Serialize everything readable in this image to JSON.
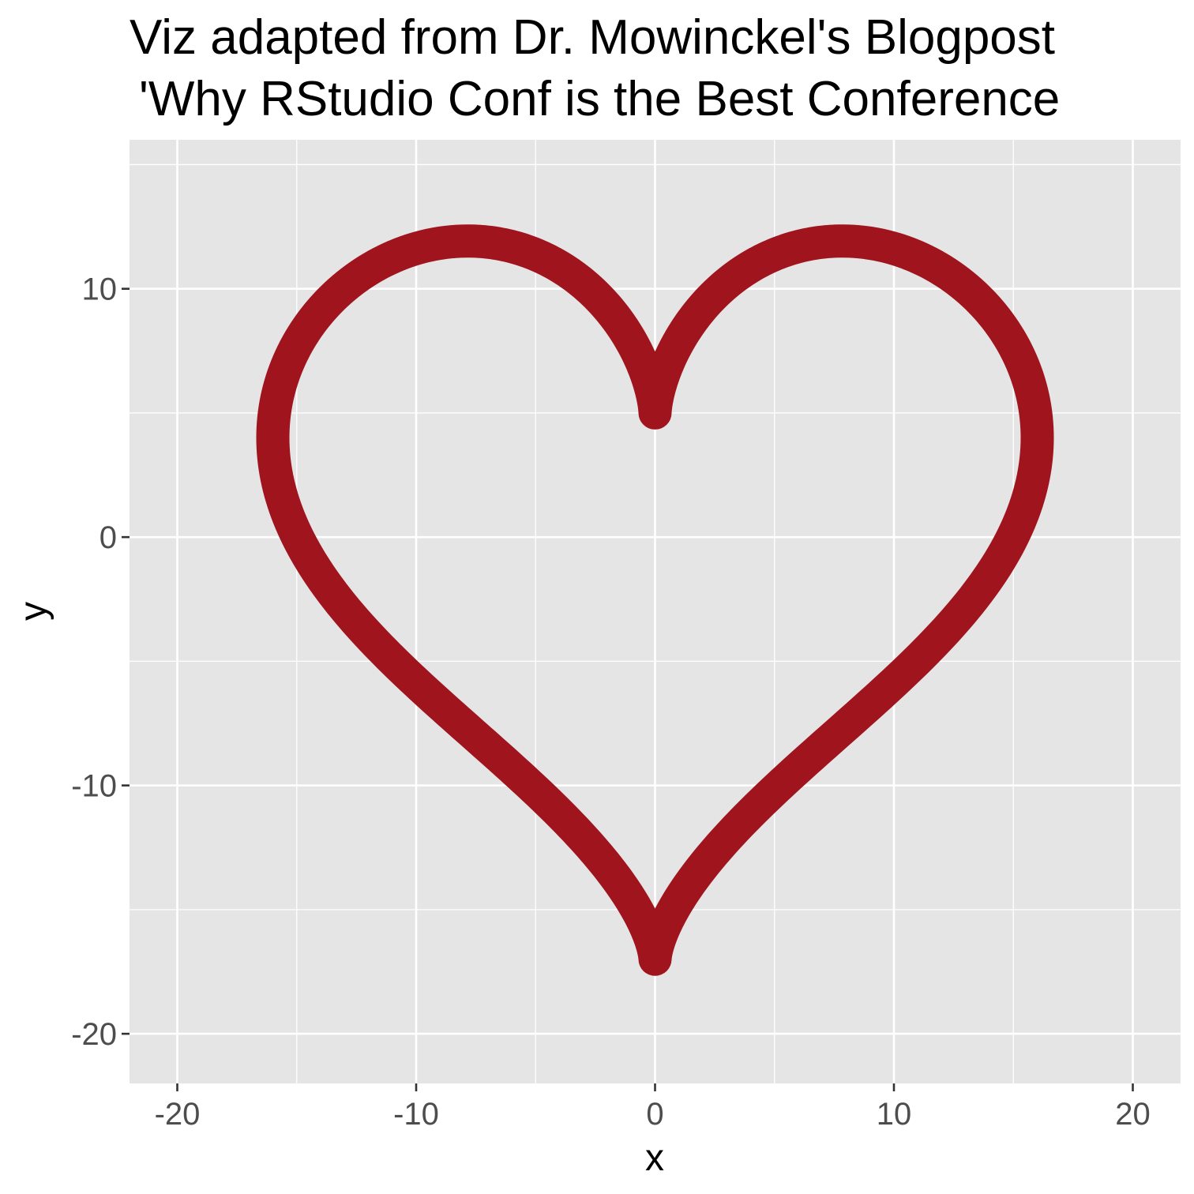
{
  "chart_data": {
    "type": "line",
    "title_lines": [
      "Viz adapted from Dr. Mowinckel's Blogpost",
      "'Why RStudio Conf is the Best Conference"
    ],
    "xlabel": "x",
    "ylabel": "y",
    "xlim": [
      -22,
      22
    ],
    "ylim": [
      -22,
      16
    ],
    "x_ticks": [
      -20,
      -10,
      0,
      10,
      20
    ],
    "x_tick_labels": [
      "-20",
      "-10",
      "0",
      "10",
      "20"
    ],
    "y_ticks": [
      -20,
      -10,
      0,
      10
    ],
    "y_tick_labels": [
      "-20",
      "-10",
      "0",
      "10"
    ],
    "x_minor_ticks": [
      -15,
      -5,
      5,
      15
    ],
    "y_minor_ticks": [
      -15,
      -5,
      5,
      15
    ],
    "grid": true,
    "legend": "none",
    "series": [
      {
        "curve": "heart",
        "equation_x": "16*sin(t)^3",
        "equation_y": "13*cos(t) - 5*cos(2t) - 2*cos(3t) - cos(4t)",
        "t_range": [
          0,
          6.283185
        ],
        "color": "#a0141e"
      }
    ],
    "colors": {
      "panel_background": "#e5e5e5",
      "grid": "#ffffff",
      "line": "#a0141e",
      "tick_text": "#4d4d4d",
      "tick_mark": "#333333"
    }
  }
}
